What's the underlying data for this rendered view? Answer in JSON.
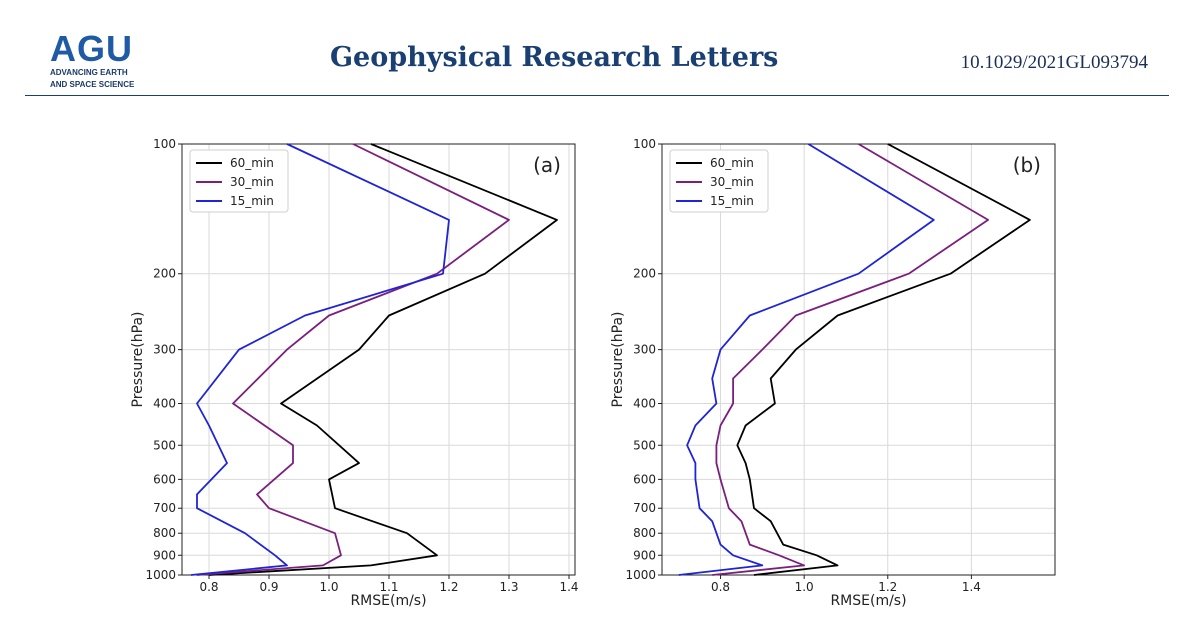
{
  "header": {
    "logo_text": "AGU",
    "logo_tagline_1": "ADVANCING EARTH",
    "logo_tagline_2": "AND SPACE SCIENCE",
    "journal_title": "Geophysical Research Letters",
    "doi": "10.1029/2021GL093794"
  },
  "colors": {
    "brand": "#1a3f73",
    "series_60": "#000000",
    "series_30": "#7b1f7f",
    "series_15": "#1f24d6"
  },
  "chart_data": [
    {
      "type": "line",
      "panel_label": "(a)",
      "xlabel": "RMSE(m/s)",
      "ylabel": "Pressure(hPa)",
      "xlim": [
        0.755,
        1.41
      ],
      "xticks": [
        0.8,
        0.9,
        1.0,
        1.1,
        1.2,
        1.3,
        1.4
      ],
      "ylim": [
        100,
        1000
      ],
      "yscale": "log",
      "yticks": [
        100,
        200,
        300,
        400,
        500,
        600,
        700,
        800,
        900,
        1000
      ],
      "grid": true,
      "legend_position": "top-left",
      "series": [
        {
          "name": "60_min",
          "color": "#000000",
          "x": [
            1.07,
            1.38,
            1.26,
            1.1,
            1.05,
            0.92,
            0.98,
            1.05,
            1.0,
            1.01,
            1.13,
            1.18,
            1.07,
            0.8
          ],
          "y": [
            100,
            150,
            200,
            250,
            300,
            400,
            450,
            550,
            600,
            700,
            800,
            900,
            950,
            1000
          ]
        },
        {
          "name": "30_min",
          "color": "#7b1f7f",
          "x": [
            1.04,
            1.3,
            1.18,
            1.0,
            0.93,
            0.84,
            0.94,
            0.94,
            0.88,
            0.9,
            1.01,
            1.02,
            0.99,
            0.78
          ],
          "y": [
            100,
            150,
            200,
            250,
            300,
            400,
            500,
            550,
            650,
            700,
            800,
            900,
            950,
            1000
          ]
        },
        {
          "name": "15_min",
          "color": "#1f24d6",
          "x": [
            0.93,
            1.2,
            1.19,
            0.96,
            0.85,
            0.78,
            0.8,
            0.83,
            0.78,
            0.78,
            0.86,
            0.91,
            0.93,
            0.77
          ],
          "y": [
            100,
            150,
            200,
            250,
            300,
            400,
            450,
            550,
            650,
            700,
            800,
            900,
            950,
            1000
          ]
        }
      ]
    },
    {
      "type": "line",
      "panel_label": "(b)",
      "xlabel": "RMSE(m/s)",
      "ylabel": "Pressure(hPa)",
      "xlim": [
        0.66,
        1.6
      ],
      "xticks": [
        0.8,
        1.0,
        1.2,
        1.4
      ],
      "ylim": [
        100,
        1000
      ],
      "yscale": "log",
      "yticks": [
        100,
        200,
        300,
        400,
        500,
        600,
        700,
        800,
        900,
        1000
      ],
      "grid": true,
      "legend_position": "top-left",
      "series": [
        {
          "name": "60_min",
          "color": "#000000",
          "x": [
            1.2,
            1.54,
            1.35,
            1.08,
            0.98,
            0.92,
            0.93,
            0.86,
            0.84,
            0.86,
            0.87,
            0.88,
            0.92,
            0.95,
            1.03,
            1.08,
            0.88
          ],
          "y": [
            100,
            150,
            200,
            250,
            300,
            350,
            400,
            450,
            500,
            550,
            600,
            700,
            750,
            850,
            900,
            950,
            1000
          ]
        },
        {
          "name": "30_min",
          "color": "#7b1f7f",
          "x": [
            1.13,
            1.44,
            1.25,
            0.98,
            0.9,
            0.83,
            0.83,
            0.8,
            0.79,
            0.79,
            0.8,
            0.82,
            0.85,
            0.87,
            0.94,
            1.0,
            0.78
          ],
          "y": [
            100,
            150,
            200,
            250,
            300,
            350,
            400,
            450,
            500,
            550,
            600,
            700,
            750,
            850,
            900,
            950,
            1000
          ]
        },
        {
          "name": "15_min",
          "color": "#1f24d6",
          "x": [
            1.01,
            1.31,
            1.13,
            0.87,
            0.8,
            0.78,
            0.79,
            0.74,
            0.72,
            0.74,
            0.74,
            0.75,
            0.78,
            0.8,
            0.83,
            0.9,
            0.7
          ],
          "y": [
            100,
            150,
            200,
            250,
            300,
            350,
            400,
            450,
            500,
            550,
            600,
            700,
            750,
            850,
            900,
            950,
            1000
          ]
        }
      ]
    }
  ]
}
